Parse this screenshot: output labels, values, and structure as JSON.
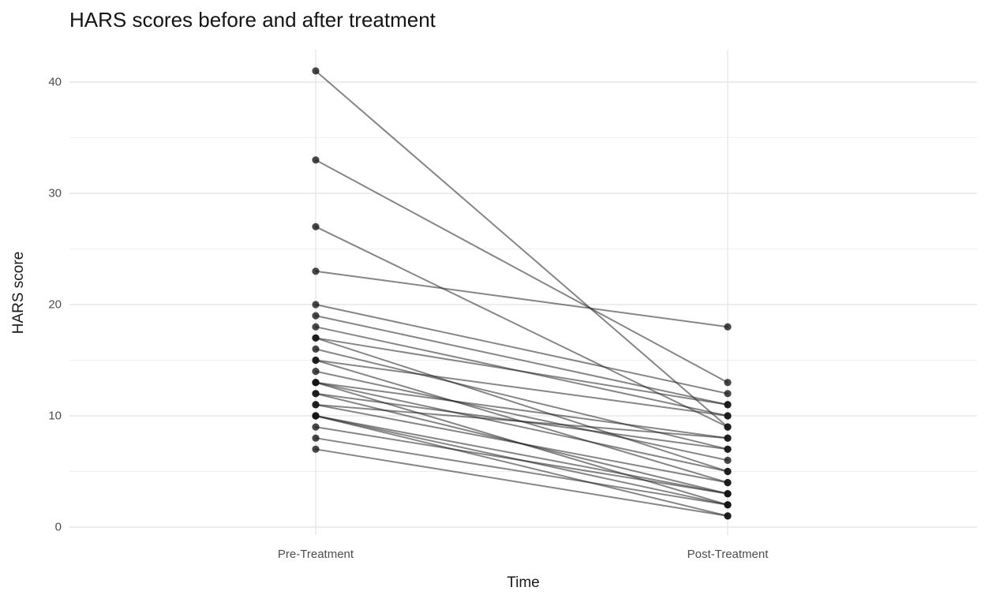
{
  "chart_data": {
    "type": "line",
    "subtype": "paired-slope-graph",
    "title": "HARS scores before and after treatment",
    "xlabel": "Time",
    "ylabel": "HARS score",
    "categories": [
      "Pre-Treatment",
      "Post-Treatment"
    ],
    "y_ticks": [
      0,
      10,
      20,
      30,
      40
    ],
    "y_minor_ticks": [
      5,
      15,
      25,
      35
    ],
    "ylim": [
      -0.5,
      42.8
    ],
    "grid": "horizontal major+minor, vertical major at each category, no axis lines, no legend",
    "legend": "none",
    "pairs_format": "[pre_score, post_score] per subject",
    "pairs": [
      [
        41,
        9
      ],
      [
        33,
        13
      ],
      [
        27,
        9
      ],
      [
        23,
        18
      ],
      [
        20,
        12
      ],
      [
        19,
        11
      ],
      [
        18,
        10
      ],
      [
        17,
        11
      ],
      [
        17,
        5
      ],
      [
        16,
        7
      ],
      [
        15,
        10
      ],
      [
        15,
        4
      ],
      [
        14,
        6
      ],
      [
        13,
        8
      ],
      [
        13,
        5
      ],
      [
        13,
        2
      ],
      [
        12,
        7
      ],
      [
        12,
        3
      ],
      [
        11,
        8
      ],
      [
        11,
        4
      ],
      [
        10,
        1
      ],
      [
        10,
        3
      ],
      [
        10,
        2
      ],
      [
        9,
        3
      ],
      [
        8,
        2
      ],
      [
        7,
        1
      ]
    ]
  },
  "style": {
    "background": "#ffffff",
    "point_color": "#141414",
    "point_opacity": 0.78,
    "line_color": "#222222",
    "line_opacity": 0.55,
    "grid_major_color": "#e7e7e7",
    "grid_minor_color": "#efefef",
    "tick_label_color": "#4d4d4d",
    "title_color": "#141414"
  }
}
